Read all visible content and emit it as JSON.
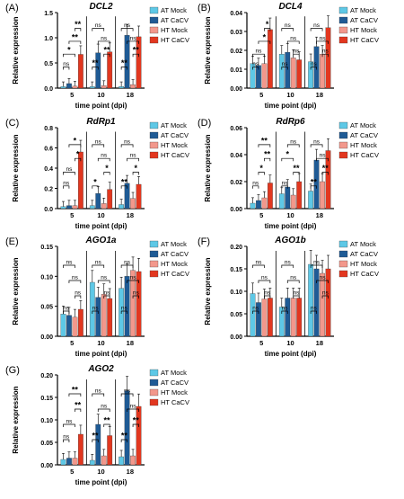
{
  "figure": {
    "colors": {
      "AT Mock": "#5ec8e6",
      "AT CaCV": "#1f5b95",
      "HT Mock": "#f2988c",
      "HT CaCV": "#e2371f",
      "axis": "#000000",
      "error": "#000000"
    }
  },
  "chart_data": [
    {
      "type": "bar",
      "panel_label": "(A)",
      "title": "DCL2",
      "xlabel": "time point (dpi)",
      "ylabel": "Relative expression",
      "categories": [
        "5",
        "10",
        "18"
      ],
      "ylim": [
        0,
        1.5
      ],
      "yticks": [
        "0.0",
        "0.5",
        "1.0",
        "1.5"
      ],
      "series": [
        {
          "name": "AT Mock",
          "values": [
            0.03,
            0.03,
            0.03
          ]
        },
        {
          "name": "AT CaCV",
          "values": [
            0.09,
            0.7,
            1.05
          ]
        },
        {
          "name": "HT Mock",
          "values": [
            0.04,
            0.05,
            0.07
          ]
        },
        {
          "name": "HT CaCV",
          "values": [
            0.67,
            0.72,
            1.02
          ]
        }
      ],
      "legend": "none",
      "significance": [
        {
          "cat": 0,
          "from": 0,
          "to": 1,
          "label": "ns",
          "level": 0
        },
        {
          "cat": 0,
          "from": 0,
          "to": 2,
          "label": "*",
          "level": 1
        },
        {
          "cat": 0,
          "from": 1,
          "to": 3,
          "label": "**",
          "level": 2
        },
        {
          "cat": 0,
          "from": 2,
          "to": 3,
          "label": "**",
          "level": 3
        },
        {
          "cat": 1,
          "from": 0,
          "to": 1,
          "label": "**",
          "level": 0
        },
        {
          "cat": 1,
          "from": 2,
          "to": 3,
          "label": "**",
          "level": 1
        },
        {
          "cat": 1,
          "from": 1,
          "to": 3,
          "label": "ns",
          "level": 2
        },
        {
          "cat": 1,
          "from": 0,
          "to": 2,
          "label": "ns",
          "level": 3
        },
        {
          "cat": 2,
          "from": 0,
          "to": 1,
          "label": "**",
          "level": 0
        },
        {
          "cat": 2,
          "from": 2,
          "to": 3,
          "label": "**",
          "level": 1
        },
        {
          "cat": 2,
          "from": 1,
          "to": 3,
          "label": "ns",
          "level": 2
        },
        {
          "cat": 2,
          "from": 0,
          "to": 2,
          "label": "ns",
          "level": 3
        }
      ]
    },
    {
      "type": "bar",
      "panel_label": "(B)",
      "title": "DCL4",
      "xlabel": "time point (dpi)",
      "ylabel": "Relative expression",
      "categories": [
        "5",
        "10",
        "18"
      ],
      "ylim": [
        0,
        0.04
      ],
      "yticks": [
        "0.00",
        "0.01",
        "0.02",
        "0.03",
        "0.04"
      ],
      "series": [
        {
          "name": "AT Mock",
          "values": [
            0.013,
            0.018,
            0.014
          ]
        },
        {
          "name": "AT CaCV",
          "values": [
            0.012,
            0.019,
            0.022
          ]
        },
        {
          "name": "HT Mock",
          "values": [
            0.013,
            0.016,
            0.018
          ]
        },
        {
          "name": "HT CaCV",
          "values": [
            0.031,
            0.015,
            0.032
          ]
        }
      ],
      "legend": "right",
      "significance": [
        {
          "cat": 0,
          "from": 0,
          "to": 1,
          "label": "ns",
          "level": 0
        },
        {
          "cat": 0,
          "from": 0,
          "to": 2,
          "label": "ns",
          "level": 1
        },
        {
          "cat": 0,
          "from": 1,
          "to": 3,
          "label": "*",
          "level": 2
        },
        {
          "cat": 0,
          "from": 2,
          "to": 3,
          "label": "*",
          "level": 3
        },
        {
          "cat": 1,
          "from": 0,
          "to": 1,
          "label": "ns",
          "level": 0
        },
        {
          "cat": 1,
          "from": 2,
          "to": 3,
          "label": "ns",
          "level": 1
        },
        {
          "cat": 1,
          "from": 1,
          "to": 3,
          "label": "ns",
          "level": 2
        },
        {
          "cat": 1,
          "from": 0,
          "to": 2,
          "label": "ns",
          "level": 3
        },
        {
          "cat": 2,
          "from": 0,
          "to": 1,
          "label": "ns",
          "level": 0
        },
        {
          "cat": 2,
          "from": 2,
          "to": 3,
          "label": "ns",
          "level": 1
        },
        {
          "cat": 2,
          "from": 1,
          "to": 3,
          "label": "ns",
          "level": 2
        },
        {
          "cat": 2,
          "from": 0,
          "to": 2,
          "label": "ns",
          "level": 3
        }
      ]
    },
    {
      "type": "bar",
      "panel_label": "(C)",
      "title": "RdRp1",
      "xlabel": "time point (dpi)",
      "ylabel": "Relative expression",
      "categories": [
        "5",
        "10",
        "18"
      ],
      "ylim": [
        0,
        0.8
      ],
      "yticks": [
        "0.0",
        "0.2",
        "0.4",
        "0.6",
        "0.8"
      ],
      "series": [
        {
          "name": "AT Mock",
          "values": [
            0.02,
            0.03,
            0.04
          ]
        },
        {
          "name": "AT CaCV",
          "values": [
            0.03,
            0.15,
            0.25
          ]
        },
        {
          "name": "HT Mock",
          "values": [
            0.03,
            0.05,
            0.1
          ]
        },
        {
          "name": "HT CaCV",
          "values": [
            0.56,
            0.19,
            0.24
          ]
        }
      ],
      "legend": "right",
      "significance": [
        {
          "cat": 0,
          "from": 0,
          "to": 1,
          "label": "ns",
          "level": 0
        },
        {
          "cat": 0,
          "from": 0,
          "to": 2,
          "label": "ns",
          "level": 1
        },
        {
          "cat": 0,
          "from": 2,
          "to": 3,
          "label": "*",
          "level": 2
        },
        {
          "cat": 0,
          "from": 1,
          "to": 3,
          "label": "*",
          "level": 3
        },
        {
          "cat": 1,
          "from": 0,
          "to": 1,
          "label": "*",
          "level": 0
        },
        {
          "cat": 1,
          "from": 2,
          "to": 3,
          "label": "*",
          "level": 1
        },
        {
          "cat": 1,
          "from": 1,
          "to": 3,
          "label": "ns",
          "level": 2
        },
        {
          "cat": 1,
          "from": 0,
          "to": 2,
          "label": "ns",
          "level": 3
        },
        {
          "cat": 2,
          "from": 0,
          "to": 1,
          "label": "**",
          "level": 0
        },
        {
          "cat": 2,
          "from": 2,
          "to": 3,
          "label": "*",
          "level": 1
        },
        {
          "cat": 2,
          "from": 1,
          "to": 3,
          "label": "ns",
          "level": 2
        },
        {
          "cat": 2,
          "from": 0,
          "to": 2,
          "label": "ns",
          "level": 3
        }
      ]
    },
    {
      "type": "bar",
      "panel_label": "(D)",
      "title": "RdRp6",
      "xlabel": "time point (dpi)",
      "ylabel": "Relative expression",
      "categories": [
        "5",
        "10",
        "18"
      ],
      "ylim": [
        0,
        0.06
      ],
      "yticks": [
        "0.00",
        "0.02",
        "0.04",
        "0.06"
      ],
      "series": [
        {
          "name": "AT Mock",
          "values": [
            0.004,
            0.011,
            0.013
          ]
        },
        {
          "name": "AT CaCV",
          "values": [
            0.006,
            0.016,
            0.036
          ]
        },
        {
          "name": "HT Mock",
          "values": [
            0.008,
            0.01,
            0.02
          ]
        },
        {
          "name": "HT CaCV",
          "values": [
            0.019,
            0.02,
            0.043
          ]
        }
      ],
      "legend": "right",
      "significance": [
        {
          "cat": 0,
          "from": 0,
          "to": 1,
          "label": "ns",
          "level": 0
        },
        {
          "cat": 0,
          "from": 1,
          "to": 2,
          "label": "*",
          "level": 1
        },
        {
          "cat": 0,
          "from": 2,
          "to": 3,
          "label": "**",
          "level": 2
        },
        {
          "cat": 0,
          "from": 1,
          "to": 3,
          "label": "**",
          "level": 3
        },
        {
          "cat": 1,
          "from": 0,
          "to": 1,
          "label": "ns",
          "level": 0
        },
        {
          "cat": 1,
          "from": 2,
          "to": 3,
          "label": "**",
          "level": 1
        },
        {
          "cat": 1,
          "from": 0,
          "to": 2,
          "label": "*",
          "level": 2
        },
        {
          "cat": 1,
          "from": 1,
          "to": 3,
          "label": "ns",
          "level": 3
        },
        {
          "cat": 2,
          "from": 0,
          "to": 1,
          "label": "**",
          "level": 0
        },
        {
          "cat": 2,
          "from": 2,
          "to": 3,
          "label": "**",
          "level": 1
        },
        {
          "cat": 2,
          "from": 1,
          "to": 3,
          "label": "ns",
          "level": 2
        },
        {
          "cat": 2,
          "from": 0,
          "to": 2,
          "label": "ns",
          "level": 3
        }
      ]
    },
    {
      "type": "bar",
      "panel_label": "(E)",
      "title": "AGO1a",
      "xlabel": "time point (dpi)",
      "ylabel": "Relative expression",
      "categories": [
        "5",
        "10",
        "18"
      ],
      "ylim": [
        0,
        0.15
      ],
      "yticks": [
        "0.00",
        "0.05",
        "0.10",
        "0.15"
      ],
      "series": [
        {
          "name": "AT Mock",
          "values": [
            0.037,
            0.09,
            0.08
          ]
        },
        {
          "name": "AT CaCV",
          "values": [
            0.035,
            0.065,
            0.1
          ]
        },
        {
          "name": "HT Mock",
          "values": [
            0.032,
            0.07,
            0.11
          ]
        },
        {
          "name": "HT CaCV",
          "values": [
            0.045,
            0.063,
            0.108
          ]
        }
      ],
      "legend": "right",
      "significance": [
        {
          "cat": 0,
          "from": 0,
          "to": 1,
          "label": "ns",
          "level": 0
        },
        {
          "cat": 0,
          "from": 2,
          "to": 3,
          "label": "ns",
          "level": 1
        },
        {
          "cat": 0,
          "from": 1,
          "to": 3,
          "label": "ns",
          "level": 2
        },
        {
          "cat": 0,
          "from": 0,
          "to": 2,
          "label": "ns",
          "level": 3
        },
        {
          "cat": 1,
          "from": 0,
          "to": 1,
          "label": "ns",
          "level": 0
        },
        {
          "cat": 1,
          "from": 2,
          "to": 3,
          "label": "ns",
          "level": 1
        },
        {
          "cat": 1,
          "from": 1,
          "to": 3,
          "label": "ns",
          "level": 2
        },
        {
          "cat": 1,
          "from": 0,
          "to": 2,
          "label": "ns",
          "level": 3
        },
        {
          "cat": 2,
          "from": 0,
          "to": 1,
          "label": "ns",
          "level": 0
        },
        {
          "cat": 2,
          "from": 2,
          "to": 3,
          "label": "ns",
          "level": 1
        },
        {
          "cat": 2,
          "from": 1,
          "to": 3,
          "label": "ns",
          "level": 2
        },
        {
          "cat": 2,
          "from": 0,
          "to": 2,
          "label": "ns",
          "level": 3
        }
      ]
    },
    {
      "type": "bar",
      "panel_label": "(F)",
      "title": "AGO1b",
      "xlabel": "time point (dpi)",
      "ylabel": "Relative expression",
      "categories": [
        "5",
        "10",
        "18"
      ],
      "ylim": [
        0,
        0.2
      ],
      "yticks": [
        "0.00",
        "0.05",
        "0.10",
        "0.15",
        "0.20"
      ],
      "series": [
        {
          "name": "AT Mock",
          "values": [
            0.095,
            0.065,
            0.16
          ]
        },
        {
          "name": "AT CaCV",
          "values": [
            0.075,
            0.085,
            0.15
          ]
        },
        {
          "name": "HT Mock",
          "values": [
            0.083,
            0.085,
            0.14
          ]
        },
        {
          "name": "HT CaCV",
          "values": [
            0.085,
            0.085,
            0.15
          ]
        }
      ],
      "legend": "right",
      "significance": [
        {
          "cat": 0,
          "from": 0,
          "to": 1,
          "label": "ns",
          "level": 0
        },
        {
          "cat": 0,
          "from": 2,
          "to": 3,
          "label": "ns",
          "level": 1
        },
        {
          "cat": 0,
          "from": 1,
          "to": 3,
          "label": "ns",
          "level": 2
        },
        {
          "cat": 0,
          "from": 0,
          "to": 2,
          "label": "ns",
          "level": 3
        },
        {
          "cat": 1,
          "from": 0,
          "to": 1,
          "label": "ns",
          "level": 0
        },
        {
          "cat": 1,
          "from": 2,
          "to": 3,
          "label": "ns",
          "level": 1
        },
        {
          "cat": 1,
          "from": 1,
          "to": 3,
          "label": "ns",
          "level": 2
        },
        {
          "cat": 1,
          "from": 0,
          "to": 2,
          "label": "ns",
          "level": 3
        },
        {
          "cat": 2,
          "from": 0,
          "to": 1,
          "label": "ns",
          "level": 0
        },
        {
          "cat": 2,
          "from": 2,
          "to": 3,
          "label": "ns",
          "level": 1
        },
        {
          "cat": 2,
          "from": 1,
          "to": 3,
          "label": "ns",
          "level": 2
        },
        {
          "cat": 2,
          "from": 0,
          "to": 2,
          "label": "ns",
          "level": 3
        }
      ]
    },
    {
      "type": "bar",
      "panel_label": "(G)",
      "title": "AGO2",
      "xlabel": "time point (dpi)",
      "ylabel": "Relative expression",
      "categories": [
        "5",
        "10",
        "18"
      ],
      "ylim": [
        0,
        0.2
      ],
      "yticks": [
        "0.00",
        "0.05",
        "0.10",
        "0.15",
        "0.20"
      ],
      "series": [
        {
          "name": "AT Mock",
          "values": [
            0.012,
            0.01,
            0.018
          ]
        },
        {
          "name": "AT CaCV",
          "values": [
            0.015,
            0.09,
            0.165
          ]
        },
        {
          "name": "HT Mock",
          "values": [
            0.015,
            0.02,
            0.02
          ]
        },
        {
          "name": "HT CaCV",
          "values": [
            0.068,
            0.065,
            0.13
          ]
        }
      ],
      "legend": "right",
      "significance": [
        {
          "cat": 0,
          "from": 0,
          "to": 1,
          "label": "ns",
          "level": 0
        },
        {
          "cat": 0,
          "from": 0,
          "to": 2,
          "label": "ns",
          "level": 1
        },
        {
          "cat": 0,
          "from": 2,
          "to": 3,
          "label": "**",
          "level": 2
        },
        {
          "cat": 0,
          "from": 1,
          "to": 3,
          "label": "**",
          "level": 3
        },
        {
          "cat": 1,
          "from": 0,
          "to": 1,
          "label": "**",
          "level": 0
        },
        {
          "cat": 1,
          "from": 2,
          "to": 3,
          "label": "**",
          "level": 1
        },
        {
          "cat": 1,
          "from": 1,
          "to": 3,
          "label": "ns",
          "level": 2
        },
        {
          "cat": 1,
          "from": 0,
          "to": 2,
          "label": "ns",
          "level": 3
        },
        {
          "cat": 2,
          "from": 0,
          "to": 1,
          "label": "**",
          "level": 0
        },
        {
          "cat": 2,
          "from": 2,
          "to": 3,
          "label": "**",
          "level": 1
        },
        {
          "cat": 2,
          "from": 1,
          "to": 3,
          "label": "ns",
          "level": 2
        },
        {
          "cat": 2,
          "from": 0,
          "to": 2,
          "label": "ns",
          "level": 3
        }
      ]
    }
  ]
}
